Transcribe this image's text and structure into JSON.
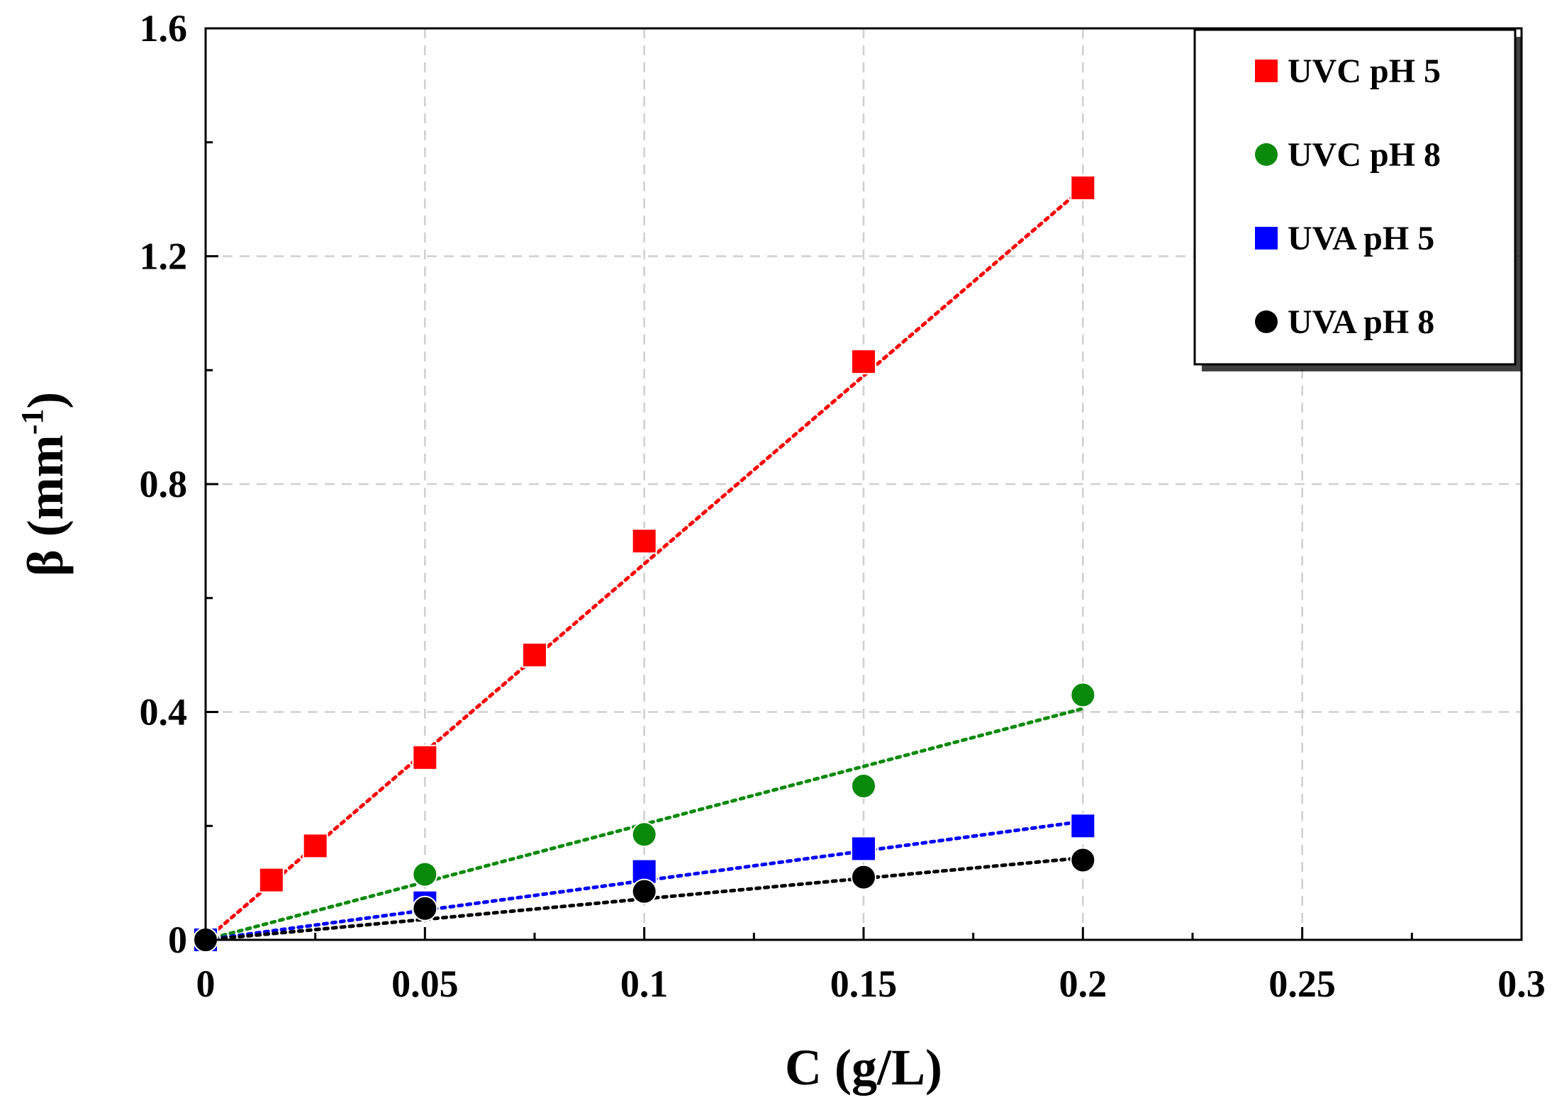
{
  "chart_data": {
    "type": "scatter",
    "title": "",
    "xlabel": "C (g/L)",
    "ylabel_main": "β (mm",
    "ylabel_sup": "-1",
    "ylabel_close": ")",
    "xlim": [
      0,
      0.3
    ],
    "ylim": [
      0,
      1.6
    ],
    "xticks": [
      0,
      0.05,
      0.1,
      0.15,
      0.2,
      0.25,
      0.3
    ],
    "xtick_labels": [
      "0",
      "0.05",
      "0.1",
      "0.15",
      "0.2",
      "0.25",
      "0.3"
    ],
    "yticks": [
      0,
      0.4,
      0.8,
      1.2,
      1.6
    ],
    "ytick_labels": [
      "0",
      "0.4",
      "0.8",
      "1.2",
      "1.6"
    ],
    "grid": true,
    "legend_position": "top-right",
    "series": [
      {
        "name": "UVC pH 5",
        "marker": "square",
        "color": "#ff0000",
        "x": [
          0,
          0.015,
          0.025,
          0.05,
          0.075,
          0.1,
          0.15,
          0.2
        ],
        "y": [
          0,
          0.105,
          0.165,
          0.32,
          0.5,
          0.7,
          1.015,
          1.32
        ],
        "fit_slope": 6.6
      },
      {
        "name": "UVC pH 8",
        "marker": "circle",
        "color": "#0a8a0a",
        "x": [
          0,
          0.05,
          0.1,
          0.15,
          0.2
        ],
        "y": [
          0,
          0.115,
          0.185,
          0.27,
          0.43
        ],
        "fit_slope": 2.03
      },
      {
        "name": "UVA pH 5",
        "marker": "square",
        "color": "#0000ff",
        "x": [
          0,
          0.05,
          0.1,
          0.15,
          0.2
        ],
        "y": [
          0,
          0.065,
          0.12,
          0.16,
          0.2
        ],
        "fit_slope": 1.04
      },
      {
        "name": "UVA pH 8",
        "marker": "circle",
        "color": "#000000",
        "x": [
          0,
          0.05,
          0.1,
          0.15,
          0.2
        ],
        "y": [
          0,
          0.055,
          0.085,
          0.11,
          0.14
        ],
        "fit_slope": 0.72
      }
    ]
  }
}
